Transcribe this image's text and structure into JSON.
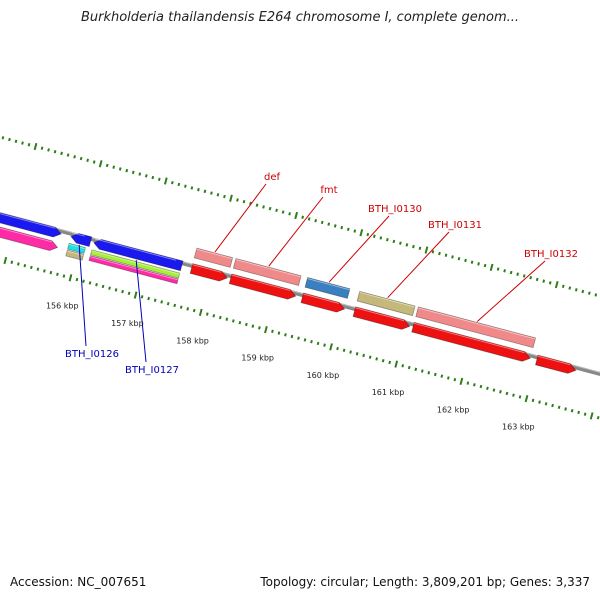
{
  "map": {
    "title": "Burkholderia thailandensis E264 chromosome I, complete genom...",
    "accession": "Accession: NC_007651",
    "summary": "Topology: circular; Length: 3,809,201 bp; Genes: 3,337"
  },
  "kbp_marks": [
    {
      "text": "156 kbp",
      "pos": 156
    },
    {
      "text": "157 kbp",
      "pos": 157
    },
    {
      "text": "158 kbp",
      "pos": 158
    },
    {
      "text": "159 kbp",
      "pos": 159
    },
    {
      "text": "160 kbp",
      "pos": 160
    },
    {
      "text": "161 kbp",
      "pos": 161
    },
    {
      "text": "162 kbp",
      "pos": 162
    },
    {
      "text": "163 kbp",
      "pos": 163
    }
  ],
  "gene_labels": [
    {
      "text": "def",
      "color": "#cc0000",
      "side": "above",
      "gene": "def"
    },
    {
      "text": "fmt",
      "color": "#cc0000",
      "side": "above",
      "gene": "fmt"
    },
    {
      "text": "BTH_I0130",
      "color": "#cc0000",
      "side": "above",
      "gene": "BTH_I0130"
    },
    {
      "text": "BTH_I0131",
      "color": "#cc0000",
      "side": "above",
      "gene": "BTH_I0131"
    },
    {
      "text": "BTH_I0132",
      "color": "#cc0000",
      "side": "above",
      "gene": "BTH_I0132"
    },
    {
      "text": "BTH_I0126",
      "color": "#0000bb",
      "side": "below",
      "gene": "BTH_I0126"
    },
    {
      "text": "BTH_I0127",
      "color": "#0000bb",
      "side": "below",
      "gene": "BTH_I0127"
    }
  ],
  "features": [
    {
      "id": "blue-left-1",
      "start": 154.0,
      "end": 155.7,
      "color": "#1a1aee",
      "strand": "forward"
    },
    {
      "id": "pink-left-1",
      "start": 154.0,
      "end": 155.7,
      "color": "#ff2aa6",
      "strand": "forward"
    },
    {
      "id": "BTH_I0126",
      "start": 155.85,
      "end": 156.15,
      "color": "#1a1aee",
      "strand": "reverse"
    },
    {
      "id": "cyan-small",
      "start": 155.85,
      "end": 156.1,
      "color": "#22e0e0",
      "strand": "none"
    },
    {
      "id": "tan-small",
      "start": 155.85,
      "end": 156.1,
      "color": "#c4b87a",
      "strand": "none"
    },
    {
      "id": "BTH_I0127",
      "start": 156.2,
      "end": 157.55,
      "color": "#1a1aee",
      "strand": "reverse"
    },
    {
      "id": "lime-strip",
      "start": 156.2,
      "end": 157.55,
      "color": "#a6f03a",
      "strand": "none"
    },
    {
      "id": "magenta-strip",
      "start": 156.2,
      "end": 157.55,
      "color": "#ff2aa6",
      "strand": "none"
    },
    {
      "id": "def",
      "start": 157.7,
      "end": 158.25,
      "color": "#f08a8a",
      "strand": "none"
    },
    {
      "id": "def-cds",
      "start": 157.7,
      "end": 158.25,
      "color": "#ee1111",
      "strand": "forward"
    },
    {
      "id": "fmt",
      "start": 158.3,
      "end": 159.3,
      "color": "#f08a8a",
      "strand": "none"
    },
    {
      "id": "fmt-cds",
      "start": 158.3,
      "end": 159.3,
      "color": "#ee1111",
      "strand": "forward"
    },
    {
      "id": "BTH_I0130",
      "start": 159.4,
      "end": 160.05,
      "color": "#3a7fc0",
      "strand": "none"
    },
    {
      "id": "BTH_I0130-cds",
      "start": 159.4,
      "end": 160.05,
      "color": "#ee1111",
      "strand": "forward"
    },
    {
      "id": "BTH_I0131",
      "start": 160.2,
      "end": 161.05,
      "color": "#c4b87a",
      "strand": "none"
    },
    {
      "id": "BTH_I0131-cds",
      "start": 160.2,
      "end": 161.05,
      "color": "#ee1111",
      "strand": "forward"
    },
    {
      "id": "BTH_I0132",
      "start": 161.1,
      "end": 162.9,
      "color": "#f08a8a",
      "strand": "none"
    },
    {
      "id": "BTH_I0132-cds",
      "start": 161.1,
      "end": 162.9,
      "color": "#ee1111",
      "strand": "forward"
    },
    {
      "id": "red-right",
      "start": 163.0,
      "end": 163.6,
      "color": "#ee1111",
      "strand": "forward"
    }
  ]
}
